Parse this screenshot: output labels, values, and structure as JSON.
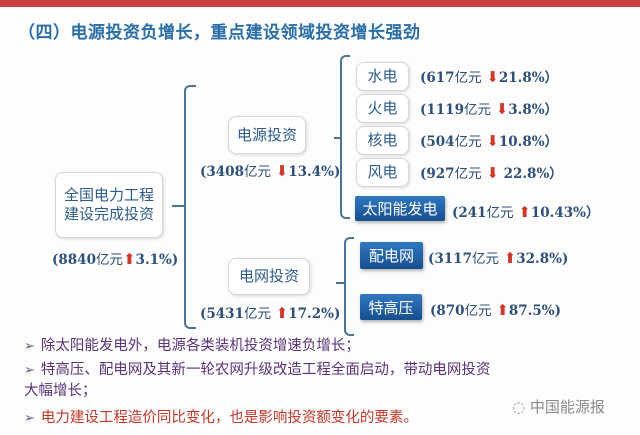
{
  "title": "（四）电源投资负增长，重点建设领域投资增长强劲",
  "root": {
    "label_line1": "全国电力工程",
    "label_line2": "建设完成投资",
    "amount": "(8840",
    "unit": "亿元",
    "direction": "up",
    "pct": "3.1%)"
  },
  "power_source": {
    "label": "电源投资",
    "amount": "(3408",
    "unit": "亿元",
    "direction": "down",
    "pct": "13.4%)",
    "items": [
      {
        "label": "水电",
        "amount": "(617",
        "unit": "亿元",
        "direction": "down",
        "pct": "21.8%）"
      },
      {
        "label": "火电",
        "amount": "(1119",
        "unit": "亿元",
        "direction": "down",
        "pct": "3.8%）"
      },
      {
        "label": "核电",
        "amount": "(504",
        "unit": "亿元",
        "direction": "down",
        "pct": "10.8%）"
      },
      {
        "label": "风电",
        "amount": "(927",
        "unit": "亿元",
        "direction": "down",
        "pct": "22.8%）"
      },
      {
        "label": "太阳能发电",
        "amount": "(241",
        "unit": "亿元",
        "direction": "up",
        "pct": "10.43%）"
      }
    ]
  },
  "grid": {
    "label": "电网投资",
    "amount": "(5431",
    "unit": "亿元",
    "direction": "up",
    "pct": "17.2%)",
    "items": [
      {
        "label": "配电网",
        "amount": "(3117",
        "unit": "亿元",
        "direction": "up",
        "pct": "32.8%)"
      },
      {
        "label": "特高压",
        "amount": "(870",
        "unit": "亿元",
        "direction": "up",
        "pct": "87.5%)"
      }
    ]
  },
  "bullets": [
    "除太阳能发电外，电源各类装机投资增速负增长；",
    "特高压、配电网及其新一轮农网升级改造工程全面启动，带动电网投资大幅增长；",
    "电力建设工程造价同比变化，也是影响投资额变化的要素。"
  ],
  "watermark": "中国能源报",
  "arrows": {
    "up": "🡅",
    "down": "🡇"
  },
  "colors": {
    "title": "#2b6ea6",
    "arrow": "#d0382e",
    "accent_box": "#1f5fa3",
    "top_bar": "#c9403c"
  }
}
